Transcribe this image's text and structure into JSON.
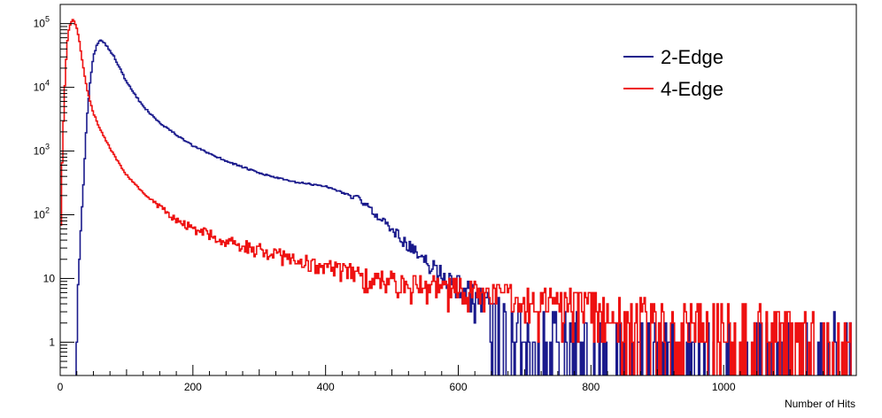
{
  "chart_data": {
    "type": "line",
    "title": "",
    "xlabel": "Number of Hits",
    "ylabel": "",
    "xlim": [
      0,
      1200
    ],
    "ylim": [
      0.3,
      200000
    ],
    "yscale": "log",
    "x_ticks": [
      0,
      200,
      400,
      600,
      800,
      1000
    ],
    "y_ticks": [
      {
        "value": 1,
        "label": "1"
      },
      {
        "value": 10,
        "label": "10"
      },
      {
        "value": 100,
        "label": "10",
        "exp": "2"
      },
      {
        "value": 1000,
        "label": "10",
        "exp": "3"
      },
      {
        "value": 10000,
        "label": "10",
        "exp": "4"
      },
      {
        "value": 100000,
        "label": "10",
        "exp": "5"
      }
    ],
    "grid": false,
    "legend_position": "top-right",
    "series": [
      {
        "name": "2-Edge",
        "color": "#1a1a8c",
        "x": [
          20,
          25,
          30,
          35,
          40,
          45,
          50,
          55,
          60,
          65,
          70,
          80,
          90,
          100,
          125,
          150,
          175,
          200,
          250,
          300,
          350,
          400,
          450,
          500,
          550,
          600,
          650,
          700,
          800,
          900,
          1000,
          1100,
          1195
        ],
        "y": [
          0.3,
          3,
          30,
          300,
          3000,
          12000,
          30000,
          45000,
          55000,
          52000,
          45000,
          32000,
          20000,
          12000,
          5000,
          2800,
          1800,
          1200,
          700,
          450,
          330,
          280,
          180,
          60,
          18,
          8,
          3,
          1.5,
          0.8,
          0.6,
          0.5,
          0.5,
          1
        ]
      },
      {
        "name": "4-Edge",
        "color": "#ee1111",
        "x": [
          0,
          2,
          5,
          8,
          10,
          12,
          15,
          18,
          20,
          22,
          25,
          30,
          35,
          40,
          45,
          50,
          60,
          70,
          80,
          100,
          125,
          150,
          175,
          200,
          250,
          300,
          350,
          400,
          450,
          500,
          550,
          600,
          650,
          700,
          750,
          800,
          900,
          1000,
          1100,
          1195
        ],
        "y": [
          15,
          300,
          3000,
          20000,
          40000,
          70000,
          95000,
          110000,
          115000,
          105000,
          85000,
          45000,
          20000,
          10000,
          6000,
          4000,
          2200,
          1400,
          900,
          420,
          220,
          130,
          85,
          60,
          40,
          28,
          20,
          15,
          11,
          9,
          7.5,
          6.5,
          5.5,
          4.5,
          4,
          3.5,
          2.5,
          2,
          1.5,
          0.8
        ]
      }
    ]
  }
}
